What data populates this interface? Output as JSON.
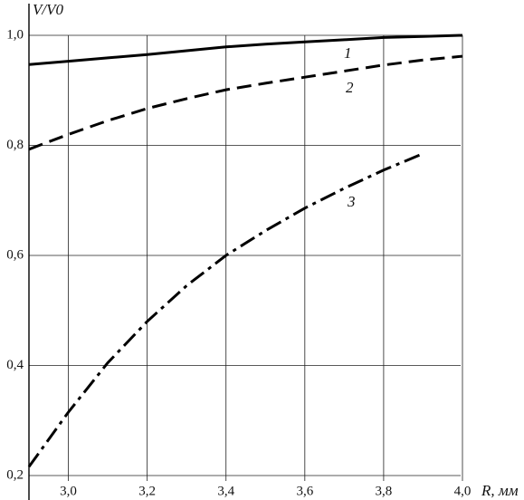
{
  "chart_data": {
    "type": "line",
    "y_label": "V/V0",
    "x_label": "R, мм",
    "x": [
      2.9,
      3.0,
      3.1,
      3.2,
      3.3,
      3.4,
      3.5,
      3.6,
      3.7,
      3.8,
      3.9,
      4.0
    ],
    "series": [
      {
        "name": "1",
        "color": "#000000",
        "dash": "solid",
        "values": [
          0.947,
          0.953,
          0.959,
          0.965,
          0.972,
          0.979,
          0.984,
          0.988,
          0.992,
          0.996,
          0.998,
          1.0
        ]
      },
      {
        "name": "2",
        "color": "#000000",
        "dash": "dashed",
        "values": [
          0.793,
          0.82,
          0.845,
          0.867,
          0.885,
          0.901,
          0.913,
          0.924,
          0.935,
          0.946,
          0.955,
          0.962
        ]
      },
      {
        "name": "3",
        "color": "#000000",
        "dash": "dashdot",
        "values": [
          0.216,
          0.315,
          0.405,
          0.48,
          0.545,
          0.6,
          0.645,
          0.686,
          0.722,
          0.755,
          0.785,
          null
        ]
      }
    ],
    "xlim": [
      2.9,
      4.0
    ],
    "ylim": [
      0.2,
      1.0
    ],
    "xticks": [
      {
        "value": 3.0,
        "label": "3,0"
      },
      {
        "value": 3.2,
        "label": "3,2"
      },
      {
        "value": 3.4,
        "label": "3,4"
      },
      {
        "value": 3.6,
        "label": "3,6"
      },
      {
        "value": 3.8,
        "label": "3,8"
      },
      {
        "value": 4.0,
        "label": "4,0"
      }
    ],
    "yticks": [
      {
        "value": 0.2,
        "label": "0,2"
      },
      {
        "value": 0.4,
        "label": "0,4"
      },
      {
        "value": 0.6,
        "label": "0,6"
      },
      {
        "value": 0.8,
        "label": "0,8"
      },
      {
        "value": 1.0,
        "label": "1,0"
      }
    ],
    "grid": true
  }
}
